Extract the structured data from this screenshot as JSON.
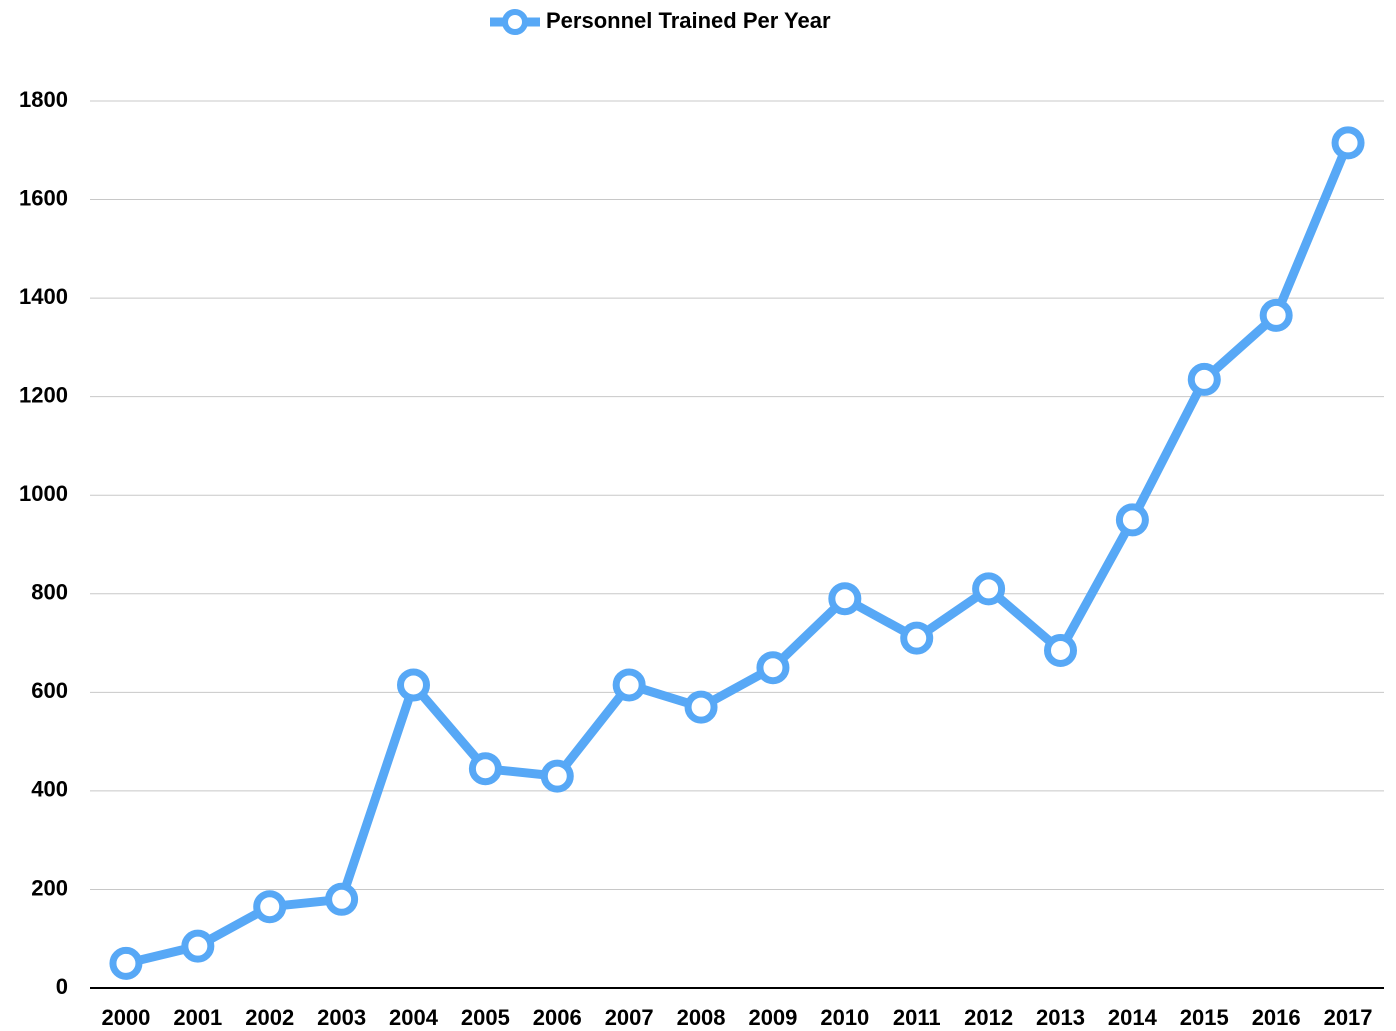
{
  "chart_data": {
    "type": "line",
    "categories": [
      "2000",
      "2001",
      "2002",
      "2003",
      "2004",
      "2005",
      "2006",
      "2007",
      "2008",
      "2009",
      "2010",
      "2011",
      "2012",
      "2013",
      "2014",
      "2015",
      "2016",
      "2017"
    ],
    "series": [
      {
        "name": "Personnel Trained Per Year",
        "color": "#57a8f6",
        "values": [
          50,
          85,
          165,
          180,
          615,
          445,
          430,
          615,
          570,
          650,
          790,
          710,
          810,
          685,
          950,
          1235,
          1365,
          1715
        ]
      }
    ],
    "ylim": [
      0,
      1800
    ],
    "yticks": [
      0,
      200,
      400,
      600,
      800,
      1000,
      1200,
      1400,
      1600,
      1800
    ],
    "grid": true,
    "legend": "top"
  }
}
